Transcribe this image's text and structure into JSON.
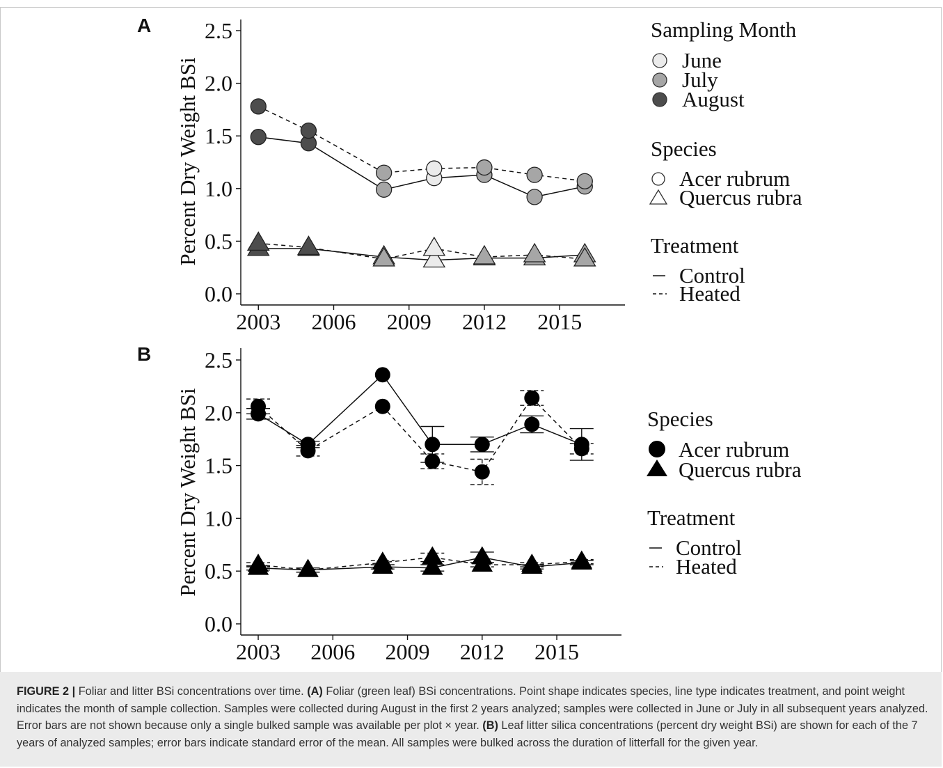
{
  "chart_data": [
    {
      "panel": "A",
      "type": "line",
      "ylabel": "Percent Dry Weight BSi",
      "ylim": [
        0,
        2.5
      ],
      "yticks": [
        "0.0",
        "0.5",
        "1.0",
        "1.5",
        "2.0",
        "2.5"
      ],
      "xticks": [
        "2003",
        "2006",
        "2009",
        "2012",
        "2015"
      ],
      "xlim": [
        2002.3,
        2017.6
      ],
      "legend": {
        "month_title": "Sampling Month",
        "months": [
          "June",
          "July",
          "August"
        ],
        "species_title": "Species",
        "species": [
          "Acer rubrum",
          "Quercus rubra"
        ],
        "treatment_title": "Treatment",
        "treatments": [
          "Control",
          "Heated"
        ]
      },
      "month_colors": {
        "June": "#ebebeb",
        "July": "#a6a6a6",
        "August": "#4d4d4d"
      },
      "series": [
        {
          "species": "Acer rubrum",
          "treatment": "Control",
          "points": [
            {
              "x": 2003,
              "y": 1.49,
              "month": "August"
            },
            {
              "x": 2005,
              "y": 1.43,
              "month": "August"
            },
            {
              "x": 2008,
              "y": 0.99,
              "month": "July"
            },
            {
              "x": 2010,
              "y": 1.1,
              "month": "June"
            },
            {
              "x": 2012,
              "y": 1.13,
              "month": "July"
            },
            {
              "x": 2014,
              "y": 0.92,
              "month": "July"
            },
            {
              "x": 2016,
              "y": 1.02,
              "month": "July"
            }
          ]
        },
        {
          "species": "Acer rubrum",
          "treatment": "Heated",
          "points": [
            {
              "x": 2003,
              "y": 1.78,
              "month": "August"
            },
            {
              "x": 2005,
              "y": 1.55,
              "month": "August"
            },
            {
              "x": 2008,
              "y": 1.15,
              "month": "July"
            },
            {
              "x": 2010,
              "y": 1.19,
              "month": "June"
            },
            {
              "x": 2012,
              "y": 1.2,
              "month": "July"
            },
            {
              "x": 2014,
              "y": 1.13,
              "month": "July"
            },
            {
              "x": 2016,
              "y": 1.07,
              "month": "July"
            }
          ]
        },
        {
          "species": "Quercus rubra",
          "treatment": "Control",
          "points": [
            {
              "x": 2003,
              "y": 0.43,
              "month": "August"
            },
            {
              "x": 2005,
              "y": 0.43,
              "month": "August"
            },
            {
              "x": 2008,
              "y": 0.35,
              "month": "July"
            },
            {
              "x": 2010,
              "y": 0.32,
              "month": "June"
            },
            {
              "x": 2012,
              "y": 0.34,
              "month": "July"
            },
            {
              "x": 2014,
              "y": 0.34,
              "month": "July"
            },
            {
              "x": 2016,
              "y": 0.37,
              "month": "July"
            }
          ]
        },
        {
          "species": "Quercus rubra",
          "treatment": "Heated",
          "points": [
            {
              "x": 2003,
              "y": 0.48,
              "month": "August"
            },
            {
              "x": 2005,
              "y": 0.44,
              "month": "August"
            },
            {
              "x": 2008,
              "y": 0.33,
              "month": "July"
            },
            {
              "x": 2010,
              "y": 0.43,
              "month": "June"
            },
            {
              "x": 2012,
              "y": 0.35,
              "month": "July"
            },
            {
              "x": 2014,
              "y": 0.37,
              "month": "July"
            },
            {
              "x": 2016,
              "y": 0.33,
              "month": "July"
            }
          ]
        }
      ]
    },
    {
      "panel": "B",
      "type": "line",
      "ylabel": "Percent Dry Weight BSi",
      "ylim": [
        0,
        2.5
      ],
      "yticks": [
        "0.0",
        "0.5",
        "1.0",
        "1.5",
        "2.0",
        "2.5"
      ],
      "xticks": [
        "2003",
        "2006",
        "2009",
        "2012",
        "2015"
      ],
      "xlim": [
        2002.3,
        2017.6
      ],
      "legend": {
        "species_title": "Species",
        "species": [
          "Acer rubrum",
          "Quercus rubra"
        ],
        "treatment_title": "Treatment",
        "treatments": [
          "Control",
          "Heated"
        ]
      },
      "series": [
        {
          "species": "Acer rubrum",
          "treatment": "Control",
          "x": [
            2003,
            2005,
            2008,
            2010,
            2012,
            2014,
            2016
          ],
          "y": [
            1.99,
            1.7,
            2.36,
            1.7,
            1.7,
            1.89,
            1.7
          ],
          "se": [
            0.05,
            0.03,
            0.0,
            0.17,
            0.07,
            0.08,
            0.15
          ]
        },
        {
          "species": "Acer rubrum",
          "treatment": "Heated",
          "x": [
            2003,
            2005,
            2008,
            2010,
            2012,
            2014,
            2016
          ],
          "y": [
            2.06,
            1.64,
            2.06,
            1.54,
            1.44,
            2.14,
            1.66
          ],
          "se": [
            0.07,
            0.05,
            0.0,
            0.07,
            0.12,
            0.07,
            0.05
          ]
        },
        {
          "species": "Quercus rubra",
          "treatment": "Control",
          "x": [
            2003,
            2005,
            2008,
            2010,
            2012,
            2014,
            2016
          ],
          "y": [
            0.53,
            0.51,
            0.54,
            0.53,
            0.63,
            0.54,
            0.58
          ],
          "se": [
            0.02,
            0.02,
            0.02,
            0.03,
            0.05,
            0.02,
            0.02
          ]
        },
        {
          "species": "Quercus rubra",
          "treatment": "Heated",
          "x": [
            2003,
            2005,
            2008,
            2010,
            2012,
            2014,
            2016
          ],
          "y": [
            0.56,
            0.51,
            0.58,
            0.63,
            0.56,
            0.56,
            0.59
          ],
          "se": [
            0.02,
            0.02,
            0.02,
            0.04,
            0.02,
            0.02,
            0.02
          ]
        }
      ]
    }
  ],
  "caption": {
    "label": "FIGURE 2 |",
    "intro": "Foliar and litter BSi concentrations over time.",
    "a_label": "(A)",
    "a_text": "Foliar (green leaf) BSi concentrations. Point shape indicates species, line type indicates treatment, and point weight indicates the month of sample collection. Samples were collected during August in the first 2 years analyzed; samples were collected in June or July in all subsequent years analyzed. Error bars are not shown because only a single bulked sample was available per plot × year.",
    "b_label": "(B)",
    "b_text": "Leaf litter silica concentrations (percent dry weight BSi) are shown for each of the 7 years of analyzed samples; error bars indicate standard error of the mean. All samples were bulked across the duration of litterfall for the given year."
  }
}
